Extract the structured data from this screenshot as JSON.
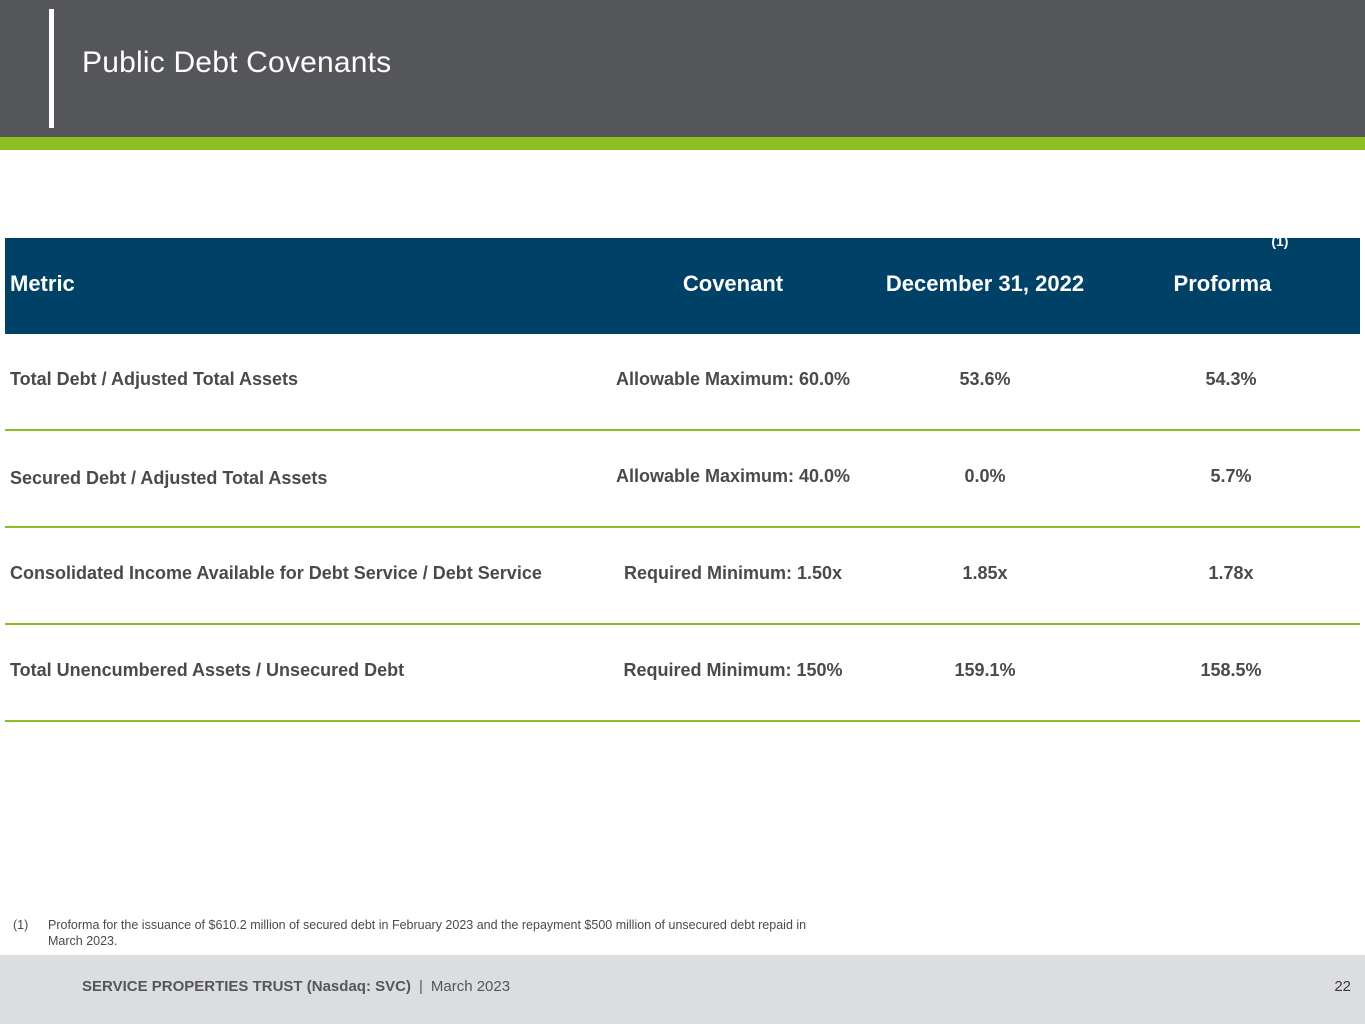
{
  "slide": {
    "title": "Public Debt Covenants",
    "colors": {
      "header_bg": "#55565a",
      "accent": "#8cbe22",
      "table_header_bg": "#004168",
      "footer_bg": "#dcdddf"
    }
  },
  "table": {
    "headers": {
      "metric": "Metric",
      "covenant": "Covenant",
      "december": "December 31, 2022",
      "proforma": "Proforma",
      "proforma_note": "(1)"
    },
    "rows": [
      {
        "metric": "Total Debt / Adjusted Total Assets",
        "covenant": "Allowable Maximum: 60.0%",
        "december": "53.6%",
        "proforma": "54.3%"
      },
      {
        "metric": "Secured Debt / Adjusted Total Assets",
        "covenant": "Allowable Maximum: 40.0%",
        "december": "0.0%",
        "proforma": "5.7%"
      },
      {
        "metric": "Consolidated Income Available for Debt Service / Debt Service",
        "covenant": "Required Minimum: 1.50x",
        "december": "1.85x",
        "proforma": "1.78x"
      },
      {
        "metric": "Total Unencumbered Assets / Unsecured Debt",
        "covenant": "Required Minimum: 150%",
        "december": "159.1%",
        "proforma": "158.5%"
      }
    ]
  },
  "footnote": {
    "number": "(1)",
    "text": "Proforma for the issuance of $610.2 million of secured debt in February 2023 and the repayment $500 million of unsecured debt repaid in March 2023."
  },
  "footer": {
    "company": "SERVICE PROPERTIES TRUST (Nasdaq: SVC)",
    "separator": "|",
    "date": "March  2023",
    "page_number": "22"
  }
}
